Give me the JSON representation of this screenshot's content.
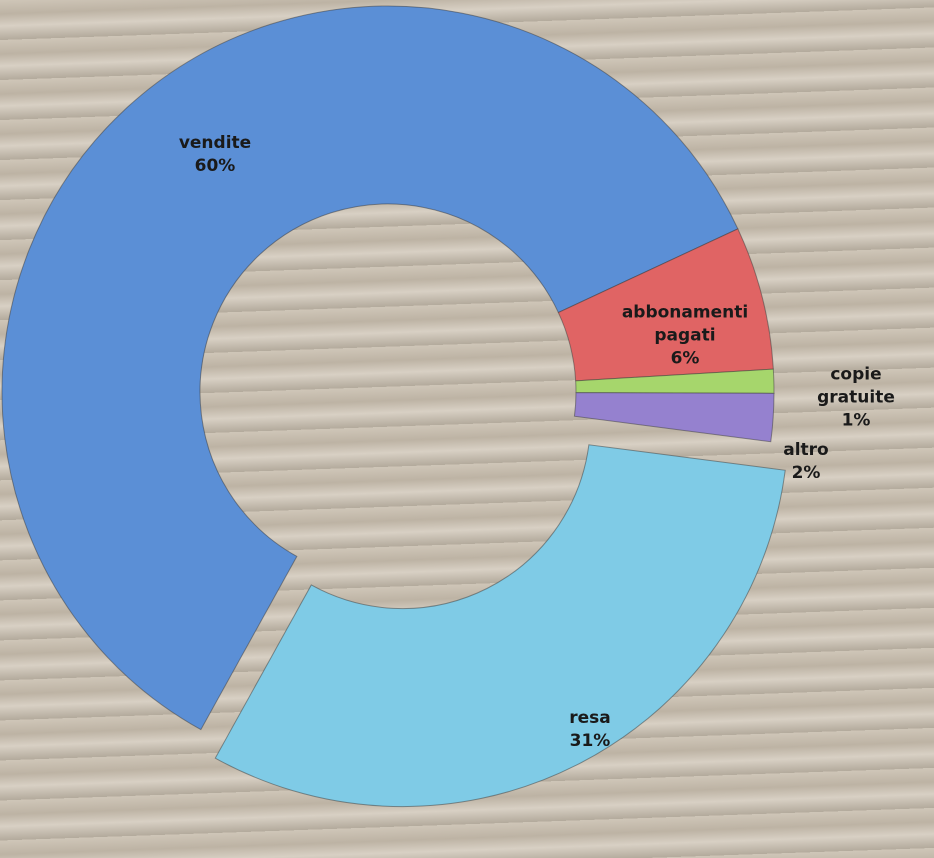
{
  "chart_data": {
    "type": "donut",
    "categories": [
      "vendite",
      "abbonamenti pagati",
      "copie gratuite",
      "altro",
      "resa"
    ],
    "values": [
      60,
      6,
      1,
      2,
      31
    ],
    "value_labels": [
      "60%",
      "6%",
      "1%",
      "2%",
      "31%"
    ],
    "colors": [
      "#5b8fd6",
      "#e06464",
      "#a6d66c",
      "#9581cf",
      "#7fcbe6"
    ],
    "exploded": [
      "resa"
    ]
  }
}
